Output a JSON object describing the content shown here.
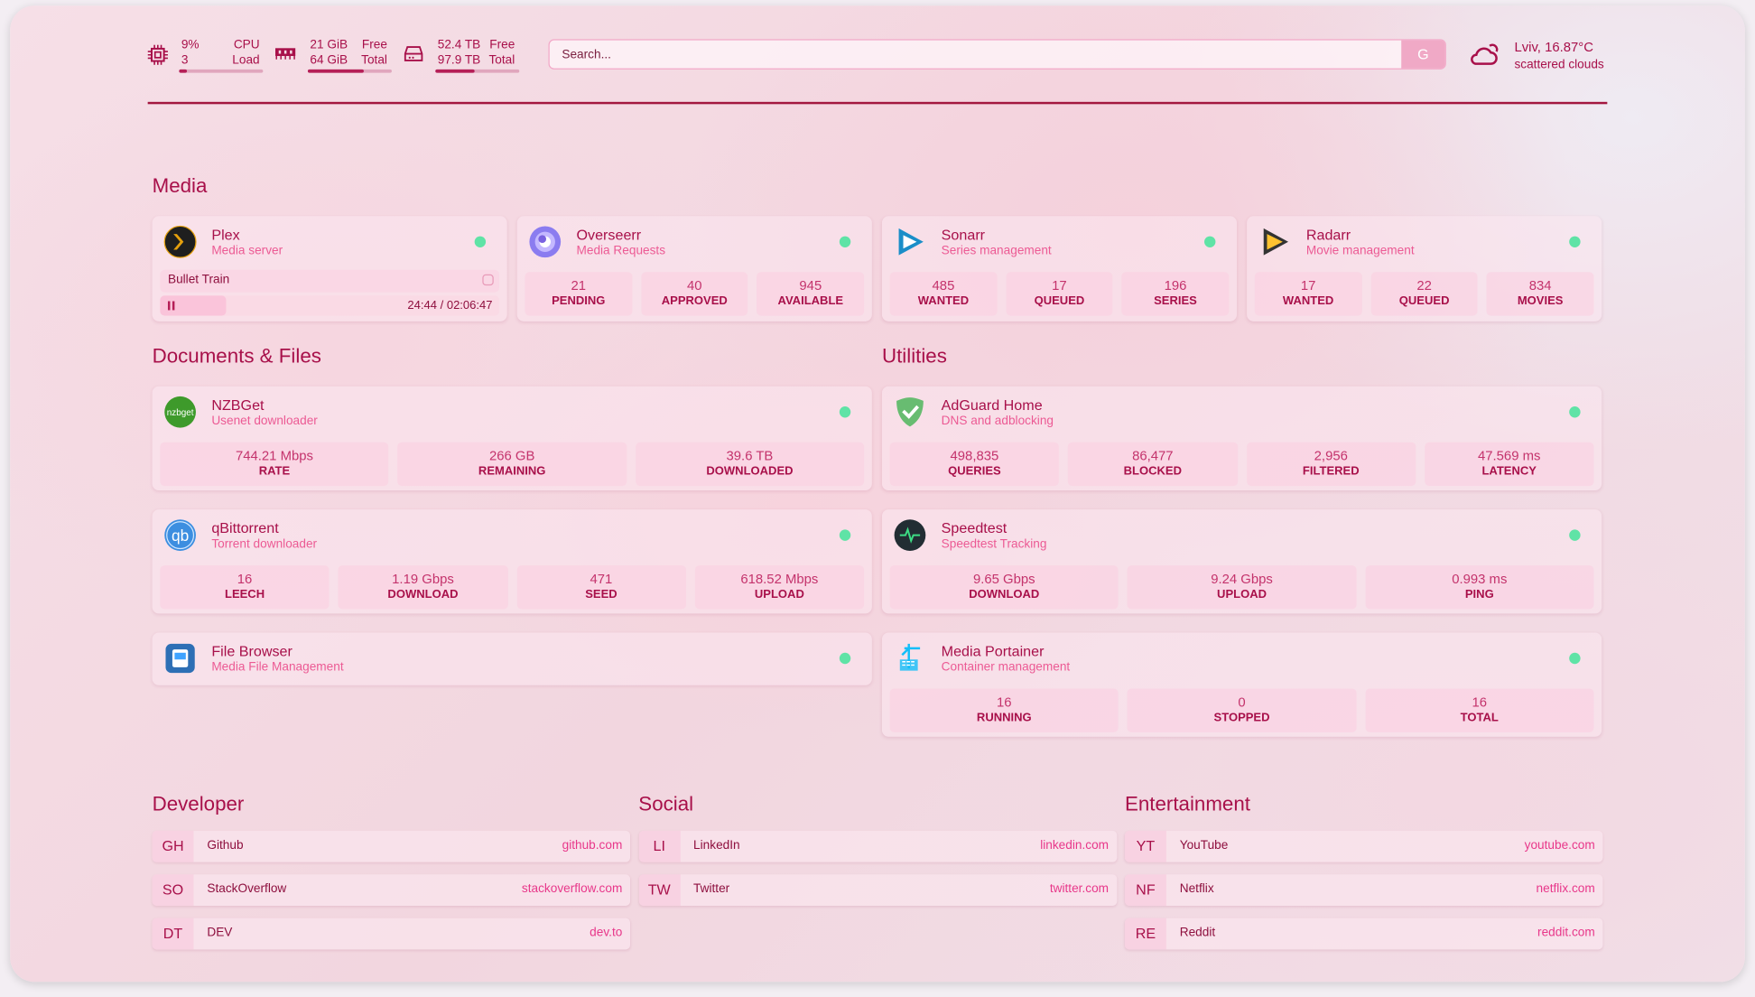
{
  "resources": {
    "cpu": {
      "icon": "cpu-icon",
      "value": "9%",
      "sub": "3",
      "label1": "CPU",
      "label2": "Load",
      "percent": 9
    },
    "memory": {
      "icon": "memory-icon",
      "value": "21 GiB",
      "sub": "64 GiB",
      "label1": "Free",
      "label2": "Total",
      "percent": 67
    },
    "disk": {
      "icon": "disk-icon",
      "value": "52.4 TB",
      "sub": "97.9 TB",
      "label1": "Free",
      "label2": "Total",
      "percent": 46
    }
  },
  "search": {
    "placeholder": "Search...",
    "button": "G"
  },
  "weather": {
    "icon": "cloud-icon",
    "title": "Lviv, 16.87°C",
    "desc": "scattered clouds"
  },
  "colors": {
    "accent": "#a8104a",
    "subtitle": "#ec5a94",
    "status_up": "#5fe3a6"
  },
  "groups": {
    "media": {
      "title": "Media",
      "services": [
        {
          "name": "Plex",
          "desc": "Media server",
          "icon": "plex-icon",
          "now_playing": {
            "title": "Bullet Train",
            "time": "24:44 / 02:06:47",
            "progress": 19.5
          }
        },
        {
          "name": "Overseerr",
          "desc": "Media Requests",
          "icon": "overseerr-icon",
          "stats": [
            {
              "v": "21",
              "l": "PENDING"
            },
            {
              "v": "40",
              "l": "APPROVED"
            },
            {
              "v": "945",
              "l": "AVAILABLE"
            }
          ]
        },
        {
          "name": "Sonarr",
          "desc": "Series management",
          "icon": "sonarr-icon",
          "stats": [
            {
              "v": "485",
              "l": "WANTED"
            },
            {
              "v": "17",
              "l": "QUEUED"
            },
            {
              "v": "196",
              "l": "SERIES"
            }
          ]
        },
        {
          "name": "Radarr",
          "desc": "Movie management",
          "icon": "radarr-icon",
          "stats": [
            {
              "v": "17",
              "l": "WANTED"
            },
            {
              "v": "22",
              "l": "QUEUED"
            },
            {
              "v": "834",
              "l": "MOVIES"
            }
          ]
        }
      ]
    },
    "documents": {
      "title": "Documents & Files",
      "services": [
        {
          "name": "NZBGet",
          "desc": "Usenet downloader",
          "icon": "nzbget-icon",
          "stats": [
            {
              "v": "744.21 Mbps",
              "l": "RATE"
            },
            {
              "v": "266 GB",
              "l": "REMAINING"
            },
            {
              "v": "39.6 TB",
              "l": "DOWNLOADED"
            }
          ]
        },
        {
          "name": "qBittorrent",
          "desc": "Torrent downloader",
          "icon": "qbittorrent-icon",
          "stats": [
            {
              "v": "16",
              "l": "LEECH"
            },
            {
              "v": "1.19 Gbps",
              "l": "DOWNLOAD"
            },
            {
              "v": "471",
              "l": "SEED"
            },
            {
              "v": "618.52 Mbps",
              "l": "UPLOAD"
            }
          ]
        },
        {
          "name": "File Browser",
          "desc": "Media File Management",
          "icon": "filebrowser-icon"
        }
      ]
    },
    "utilities": {
      "title": "Utilities",
      "services": [
        {
          "name": "AdGuard Home",
          "desc": "DNS and adblocking",
          "icon": "adguard-icon",
          "stats": [
            {
              "v": "498,835",
              "l": "QUERIES"
            },
            {
              "v": "86,477",
              "l": "BLOCKED"
            },
            {
              "v": "2,956",
              "l": "FILTERED"
            },
            {
              "v": "47.569 ms",
              "l": "LATENCY"
            }
          ]
        },
        {
          "name": "Speedtest",
          "desc": "Speedtest Tracking",
          "icon": "speedtest-icon",
          "stats": [
            {
              "v": "9.65 Gbps",
              "l": "DOWNLOAD"
            },
            {
              "v": "9.24 Gbps",
              "l": "UPLOAD"
            },
            {
              "v": "0.993 ms",
              "l": "PING"
            }
          ]
        },
        {
          "name": "Media Portainer",
          "desc": "Container management",
          "icon": "portainer-icon",
          "stats": [
            {
              "v": "16",
              "l": "RUNNING"
            },
            {
              "v": "0",
              "l": "STOPPED"
            },
            {
              "v": "16",
              "l": "TOTAL"
            }
          ]
        }
      ]
    }
  },
  "bookmarks": [
    {
      "title": "Developer",
      "items": [
        {
          "abbr": "GH",
          "name": "Github",
          "url": "github.com"
        },
        {
          "abbr": "SO",
          "name": "StackOverflow",
          "url": "stackoverflow.com"
        },
        {
          "abbr": "DT",
          "name": "DEV",
          "url": "dev.to"
        }
      ]
    },
    {
      "title": "Social",
      "items": [
        {
          "abbr": "LI",
          "name": "LinkedIn",
          "url": "linkedin.com"
        },
        {
          "abbr": "TW",
          "name": "Twitter",
          "url": "twitter.com"
        }
      ]
    },
    {
      "title": "Entertainment",
      "items": [
        {
          "abbr": "YT",
          "name": "YouTube",
          "url": "youtube.com"
        },
        {
          "abbr": "NF",
          "name": "Netflix",
          "url": "netflix.com"
        },
        {
          "abbr": "RE",
          "name": "Reddit",
          "url": "reddit.com"
        }
      ]
    }
  ]
}
